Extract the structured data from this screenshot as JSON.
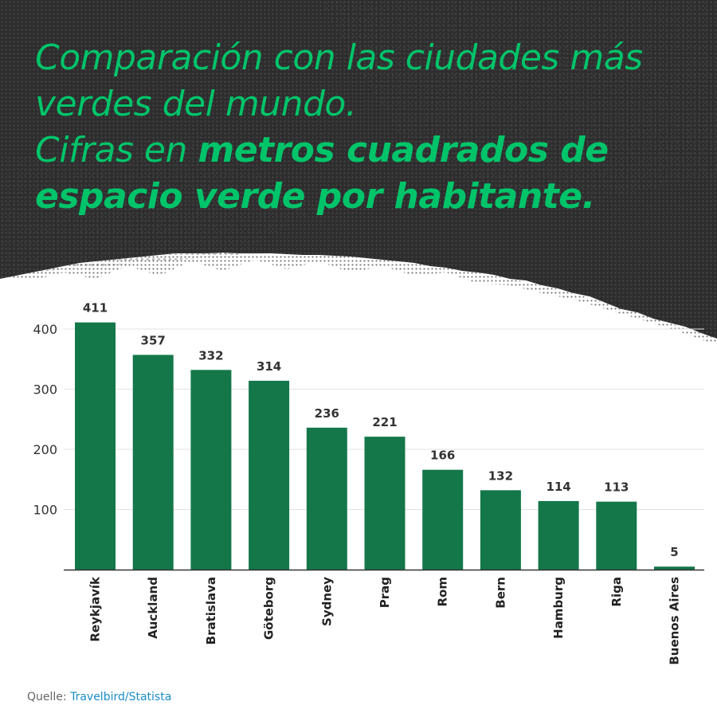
{
  "title": {
    "line1": "Comparación con las ciudades más",
    "line2": "verdes del mundo.",
    "line3_plain": "Cifras en ",
    "line3_bold": "metros cuadrados de",
    "line4_bold": "espacio verde por habitante."
  },
  "source": {
    "label": "Quelle: ",
    "name": "Travelbird/Statista"
  },
  "colors": {
    "bar": "#14774a",
    "title": "#00c46a",
    "background_dark": "#2d2d2d",
    "link": "#1a8cc8"
  },
  "chart_data": {
    "type": "bar",
    "categories": [
      "Reykjavík",
      "Auckland",
      "Bratislava",
      "Göteborg",
      "Sydney",
      "Prag",
      "Rom",
      "Bern",
      "Hamburg",
      "Riga",
      "Buenos Aires"
    ],
    "values": [
      411,
      357,
      332,
      314,
      236,
      221,
      166,
      132,
      114,
      113,
      5
    ],
    "yticks": [
      100,
      200,
      300,
      400
    ],
    "ylim": [
      0,
      400
    ],
    "grid": true,
    "legend": "none",
    "data_labels": true,
    "xlabel": "",
    "ylabel": ""
  }
}
